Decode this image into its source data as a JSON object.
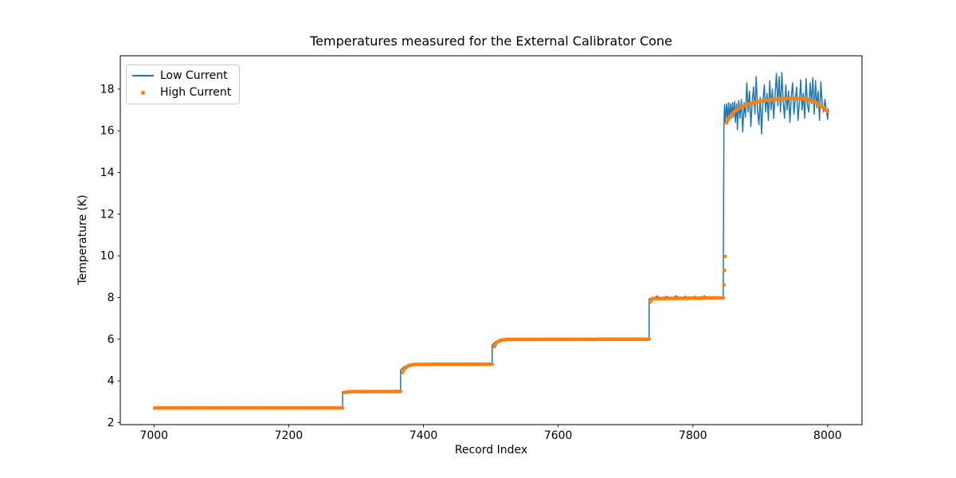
{
  "figure": {
    "background": "#ffffff"
  },
  "chart_data": {
    "type": "line",
    "title": "Temperatures measured for the External Calibrator Cone",
    "xlabel": "Record Index",
    "ylabel": "Temperature (K)",
    "xlim": [
      6950,
      8051
    ],
    "ylim": [
      1.9,
      19.6
    ],
    "xticks": [
      7000,
      7200,
      7400,
      7600,
      7800,
      8000
    ],
    "yticks": [
      2,
      4,
      6,
      8,
      10,
      12,
      14,
      16,
      18
    ],
    "grid": false,
    "legend_position": "upper left",
    "axis_color": "#000000",
    "series": [
      {
        "name": "Low Current",
        "type": "line",
        "color": "#1f77b4",
        "line_width": 1.5,
        "points": [
          [
            7000,
            2.7
          ],
          [
            7280,
            2.7
          ],
          [
            7280,
            3.48
          ],
          [
            7366,
            3.48
          ],
          [
            7366,
            4.52
          ],
          [
            7371,
            4.67
          ],
          [
            7377,
            4.75
          ],
          [
            7386,
            4.79
          ],
          [
            7502,
            4.8
          ],
          [
            7502,
            5.72
          ],
          [
            7507,
            5.88
          ],
          [
            7513,
            5.96
          ],
          [
            7522,
            5.99
          ],
          [
            7735,
            6.0
          ],
          [
            7735,
            7.93
          ],
          [
            7738,
            7.96
          ],
          [
            7743,
            7.98
          ],
          [
            7747,
            8.07
          ],
          [
            7751,
            7.96
          ],
          [
            7757,
            7.97
          ],
          [
            7761,
            8.06
          ],
          [
            7765,
            7.96
          ],
          [
            7771,
            7.98
          ],
          [
            7775,
            8.08
          ],
          [
            7779,
            7.97
          ],
          [
            7785,
            7.96
          ],
          [
            7789,
            8.06
          ],
          [
            7793,
            7.97
          ],
          [
            7799,
            7.98
          ],
          [
            7803,
            8.06
          ],
          [
            7807,
            7.96
          ],
          [
            7813,
            7.97
          ],
          [
            7817,
            8.08
          ],
          [
            7821,
            7.97
          ],
          [
            7827,
            7.96
          ],
          [
            7831,
            8.05
          ],
          [
            7835,
            7.97
          ],
          [
            7840,
            7.98
          ],
          [
            7845,
            7.99
          ],
          [
            7846,
            16.3
          ],
          [
            7847,
            17.25
          ],
          [
            7848,
            16.45
          ],
          [
            7850,
            17.3
          ],
          [
            7851,
            16.5
          ],
          [
            7853,
            17.35
          ],
          [
            7854,
            16.55
          ],
          [
            7856,
            17.3
          ],
          [
            7857,
            16.6
          ],
          [
            7859,
            17.35
          ],
          [
            7860,
            16.65
          ],
          [
            7862,
            17.4
          ],
          [
            7863,
            16.4
          ],
          [
            7865,
            17.3
          ],
          [
            7866,
            16.05
          ],
          [
            7868,
            17.45
          ],
          [
            7870,
            16.6
          ],
          [
            7872,
            17.5
          ],
          [
            7874,
            15.95
          ],
          [
            7876,
            17.35
          ],
          [
            7878,
            16.65
          ],
          [
            7880,
            18.3
          ],
          [
            7882,
            16.9
          ],
          [
            7884,
            17.9
          ],
          [
            7886,
            16.2
          ],
          [
            7888,
            17.4
          ],
          [
            7890,
            18.1
          ],
          [
            7892,
            16.8
          ],
          [
            7894,
            18.6
          ],
          [
            7896,
            17.0
          ],
          [
            7898,
            16.3
          ],
          [
            7900,
            17.6
          ],
          [
            7902,
            15.85
          ],
          [
            7904,
            17.45
          ],
          [
            7906,
            18.2
          ],
          [
            7908,
            16.9
          ],
          [
            7910,
            17.8
          ],
          [
            7912,
            16.5
          ],
          [
            7914,
            18.4
          ],
          [
            7916,
            17.0
          ],
          [
            7918,
            18.0
          ],
          [
            7920,
            16.6
          ],
          [
            7922,
            17.7
          ],
          [
            7924,
            18.75
          ],
          [
            7926,
            17.2
          ],
          [
            7928,
            18.6
          ],
          [
            7930,
            16.9
          ],
          [
            7932,
            18.8
          ],
          [
            7934,
            17.4
          ],
          [
            7936,
            16.6
          ],
          [
            7938,
            18.2
          ],
          [
            7940,
            17.0
          ],
          [
            7942,
            17.9
          ],
          [
            7944,
            16.4
          ],
          [
            7946,
            17.6
          ],
          [
            7948,
            18.3
          ],
          [
            7950,
            16.8
          ],
          [
            7952,
            17.5
          ],
          [
            7954,
            18.1
          ],
          [
            7956,
            16.5
          ],
          [
            7958,
            17.35
          ],
          [
            7960,
            18.45
          ],
          [
            7962,
            17.0
          ],
          [
            7964,
            17.8
          ],
          [
            7966,
            16.6
          ],
          [
            7968,
            18.5
          ],
          [
            7970,
            17.25
          ],
          [
            7972,
            16.9
          ],
          [
            7974,
            18.3
          ],
          [
            7976,
            17.3
          ],
          [
            7978,
            18.55
          ],
          [
            7980,
            16.8
          ],
          [
            7982,
            18.4
          ],
          [
            7984,
            17.1
          ],
          [
            7986,
            17.9
          ],
          [
            7988,
            16.5
          ],
          [
            7990,
            18.35
          ],
          [
            7992,
            17.2
          ],
          [
            7994,
            16.9
          ],
          [
            7996,
            17.5
          ],
          [
            7998,
            17.0
          ],
          [
            8000,
            16.55
          ],
          [
            8001,
            17.05
          ]
        ]
      },
      {
        "name": "High Current",
        "type": "scatter",
        "color": "#ff7f0e",
        "marker_radius": 2.3,
        "dot_spacing_records": 2,
        "segments": [
          [
            [
              7001,
              2.7
            ],
            [
              7280,
              2.7
            ]
          ],
          [
            [
              7283,
              3.44
            ],
            [
              7289,
              3.48
            ],
            [
              7366,
              3.49
            ]
          ],
          [
            [
              7369,
              4.4
            ],
            [
              7373,
              4.62
            ],
            [
              7378,
              4.73
            ],
            [
              7386,
              4.79
            ],
            [
              7502,
              4.8
            ]
          ],
          [
            [
              7505,
              5.64
            ],
            [
              7509,
              5.85
            ],
            [
              7515,
              5.95
            ],
            [
              7524,
              5.99
            ],
            [
              7735,
              6.0
            ]
          ],
          [
            [
              7737,
              7.8
            ],
            [
              7740,
              7.95
            ],
            [
              7845,
              7.98
            ]
          ],
          [
            [
              7846,
              8.6
            ]
          ],
          [
            [
              7847,
              9.3
            ]
          ],
          [
            [
              7848,
              9.97
            ]
          ],
          [
            [
              7850,
              16.38
            ],
            [
              7853,
              16.58
            ],
            [
              7857,
              16.77
            ],
            [
              7862,
              16.93
            ],
            [
              7868,
              17.07
            ],
            [
              7875,
              17.18
            ],
            [
              7883,
              17.28
            ],
            [
              7892,
              17.36
            ],
            [
              7902,
              17.43
            ],
            [
              7913,
              17.48
            ],
            [
              7926,
              17.52
            ],
            [
              7940,
              17.55
            ],
            [
              7954,
              17.55
            ],
            [
              7966,
              17.52
            ],
            [
              7975,
              17.47
            ],
            [
              7981,
              17.4
            ],
            [
              7986,
              17.3
            ],
            [
              7991,
              17.17
            ],
            [
              7996,
              17.03
            ],
            [
              8000,
              16.92
            ]
          ]
        ]
      }
    ]
  }
}
